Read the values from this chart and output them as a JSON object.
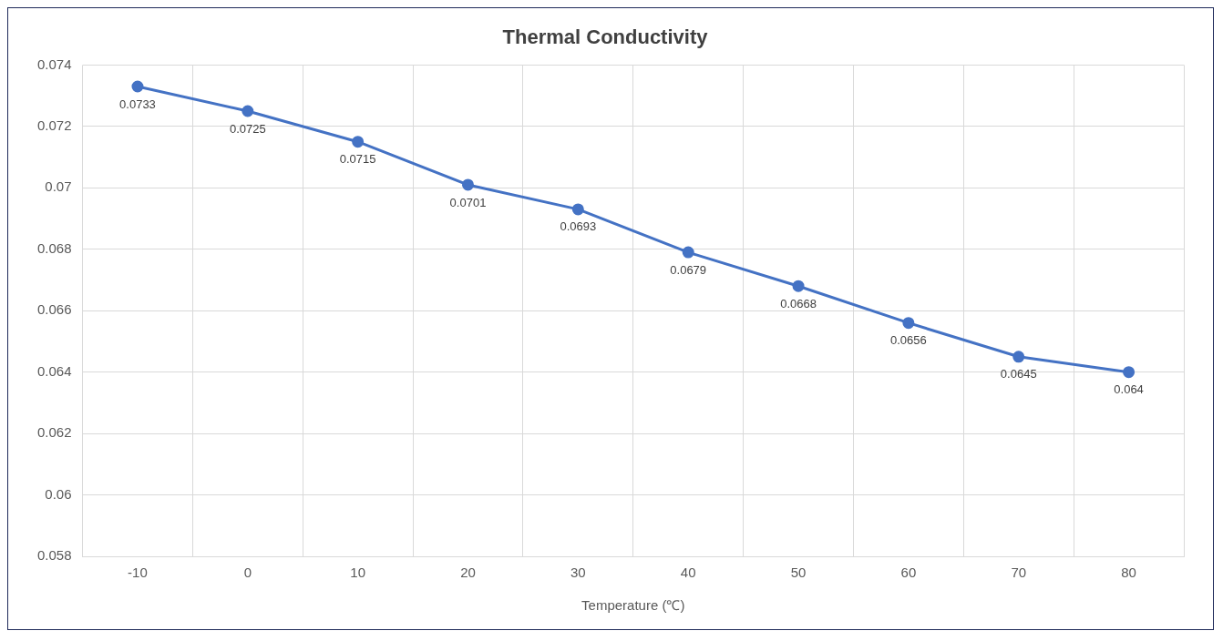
{
  "chart_data": {
    "type": "line",
    "title": "Thermal Conductivity",
    "xlabel": "Temperature (℃)",
    "categories": [
      "-10",
      "0",
      "10",
      "20",
      "30",
      "40",
      "50",
      "60",
      "70",
      "80"
    ],
    "series": [
      {
        "color": "#4472c4",
        "values": [
          0.0733,
          0.0725,
          0.0715,
          0.0701,
          0.0693,
          0.0679,
          0.0668,
          0.0656,
          0.0645,
          0.064
        ]
      }
    ],
    "ylim": [
      0.058,
      0.074
    ],
    "yticks": [
      0.058,
      0.06,
      0.062,
      0.064,
      0.066,
      0.068,
      0.07,
      0.072,
      0.074
    ],
    "grid": true,
    "legend": false,
    "marker": "circle",
    "line_style": "solid",
    "data_labels": true
  }
}
